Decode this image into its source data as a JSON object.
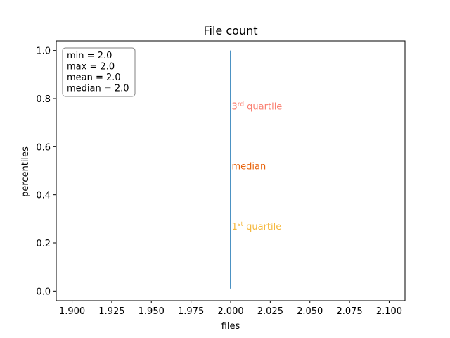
{
  "chart_data": {
    "type": "line",
    "title": "File count",
    "xlabel": "files",
    "ylabel": "percentiles",
    "xlim": [
      1.89,
      2.11
    ],
    "ylim": [
      -0.04,
      1.04
    ],
    "x_ticks": [
      1.9,
      1.925,
      1.95,
      1.975,
      2.0,
      2.025,
      2.05,
      2.075,
      2.1
    ],
    "x_tick_labels": [
      "1.900",
      "1.925",
      "1.950",
      "1.975",
      "2.000",
      "2.025",
      "2.050",
      "2.075",
      "2.100"
    ],
    "y_ticks": [
      0.0,
      0.2,
      0.4,
      0.6,
      0.8,
      1.0
    ],
    "y_tick_labels": [
      "0.0",
      "0.2",
      "0.4",
      "0.6",
      "0.8",
      "1.0"
    ],
    "grid": false,
    "series": [
      {
        "color": "#1f77b4",
        "x": [
          2.0,
          2.0
        ],
        "y": [
          0.01,
          1.0
        ]
      }
    ],
    "stats_box": {
      "placement": "top-left",
      "lines": [
        "min = 2.0",
        "max = 2.0",
        "mean = 2.0",
        "median = 2.0"
      ]
    },
    "annotations": [
      {
        "key": "q3",
        "base": "3",
        "sup": "rd",
        "rest": " quartile",
        "x": 2.0,
        "y": 0.77,
        "color": "#fa8072"
      },
      {
        "key": "median",
        "base": "median",
        "sup": "",
        "rest": "",
        "x": 2.0,
        "y": 0.52,
        "color": "#e8650e"
      },
      {
        "key": "q1",
        "base": "1",
        "sup": "st",
        "rest": " quartile",
        "x": 2.0,
        "y": 0.27,
        "color": "#f5b83d"
      }
    ]
  }
}
